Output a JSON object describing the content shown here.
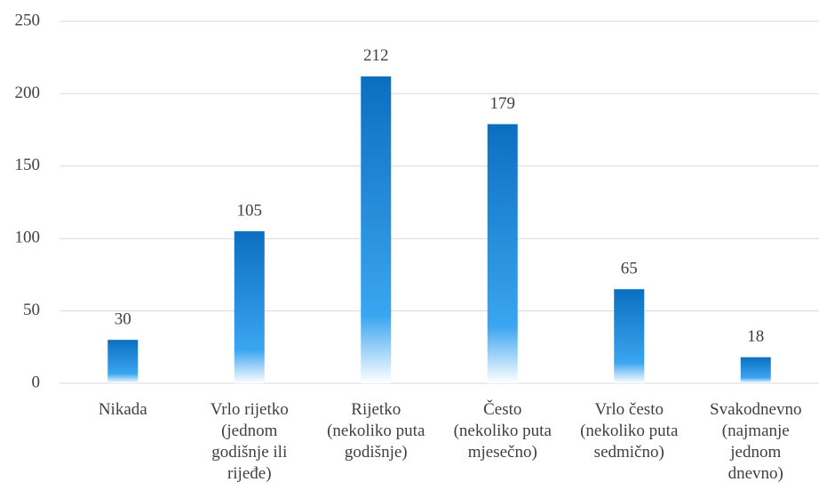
{
  "chart_data": {
    "type": "bar",
    "categories": [
      "Nikada",
      "Vrlo rijetko\n(jednom\ngodišnje ili\nrijeđe)",
      "Rijetko\n(nekoliko puta\ngodišnje)",
      "Često\n(nekoliko puta\nmjesečno)",
      "Vrlo često\n(nekoliko puta\nsedmično)",
      "Svakodnevno\n(najmanje\njednom\ndnevno)"
    ],
    "values": [
      30,
      105,
      212,
      179,
      65,
      18
    ],
    "color": "#0b6fc0",
    "ylim": [
      0,
      250
    ],
    "yticks": [
      0,
      50,
      100,
      150,
      200,
      250
    ],
    "grid": true
  }
}
